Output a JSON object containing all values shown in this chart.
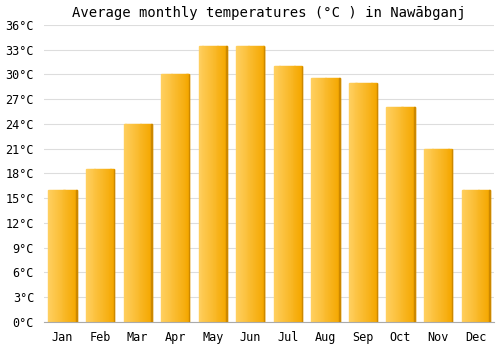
{
  "title": "Average monthly temperatures (°C ) in Nawābganj",
  "months": [
    "Jan",
    "Feb",
    "Mar",
    "Apr",
    "May",
    "Jun",
    "Jul",
    "Aug",
    "Sep",
    "Oct",
    "Nov",
    "Dec"
  ],
  "temperatures": [
    16,
    18.5,
    24,
    30,
    33.5,
    33.5,
    31,
    29.5,
    29,
    26,
    21,
    16
  ],
  "bar_color_left": "#FFD060",
  "bar_color_right": "#F5A800",
  "bar_edge_color": "#CC8800",
  "ylim": [
    0,
    36
  ],
  "yticks": [
    0,
    3,
    6,
    9,
    12,
    15,
    18,
    21,
    24,
    27,
    30,
    33,
    36
  ],
  "ytick_labels": [
    "0°C",
    "3°C",
    "6°C",
    "9°C",
    "12°C",
    "15°C",
    "18°C",
    "21°C",
    "24°C",
    "27°C",
    "30°C",
    "33°C",
    "36°C"
  ],
  "bg_color": "#ffffff",
  "grid_color": "#dddddd",
  "title_fontsize": 10,
  "tick_fontsize": 8.5,
  "bar_width": 0.75
}
